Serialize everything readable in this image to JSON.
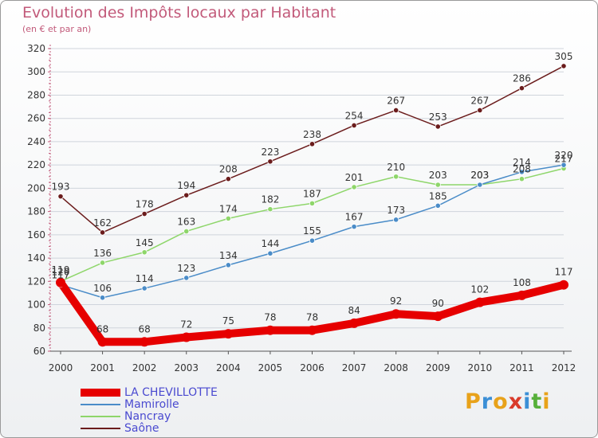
{
  "title": "Evolution des Impôts locaux par Habitant",
  "subtitle": "(en € et par an)",
  "logo": {
    "text": "Proxiti",
    "letters": [
      "P",
      "r",
      "o",
      "x",
      "i",
      "t",
      "i"
    ],
    "colors": [
      "#e8a21a",
      "#3b8fd6",
      "#e8a21a",
      "#d93b2b",
      "#3b8fd6",
      "#57b03a",
      "#e8a21a"
    ]
  },
  "chart_data": {
    "type": "line",
    "x": [
      2000,
      2001,
      2002,
      2003,
      2004,
      2005,
      2006,
      2007,
      2008,
      2009,
      2010,
      2011,
      2012
    ],
    "ylim": [
      60,
      320
    ],
    "yticks": [
      60,
      80,
      100,
      120,
      140,
      160,
      180,
      200,
      220,
      240,
      260,
      280,
      300,
      320
    ],
    "grid": "horizontal",
    "legend": "bottom-left",
    "series": [
      {
        "name": "Saône",
        "color": "#6b1c1c",
        "values": [
          193,
          162,
          178,
          194,
          208,
          223,
          238,
          254,
          267,
          253,
          267,
          286,
          305
        ]
      },
      {
        "name": "Nancray",
        "color": "#8ed66a",
        "values": [
          120,
          136,
          145,
          163,
          174,
          182,
          187,
          201,
          210,
          203,
          203,
          208,
          217
        ]
      },
      {
        "name": "Mamirolle",
        "color": "#4a8cc8",
        "values": [
          117,
          106,
          114,
          123,
          134,
          144,
          155,
          167,
          173,
          185,
          203,
          214,
          220
        ]
      },
      {
        "name": "LA CHEVILLOTTE",
        "color": "#e60000",
        "values": [
          119,
          68,
          68,
          72,
          75,
          78,
          78,
          84,
          92,
          90,
          102,
          108,
          117
        ]
      }
    ],
    "data_labels": {
      "Saône": [
        "193",
        "162",
        "178",
        "194",
        "208",
        "223",
        "238",
        "254",
        "267",
        "253",
        "267",
        "286",
        "305"
      ],
      "Nancray": [
        "120",
        "136",
        "145",
        "163",
        "174",
        "182",
        "187",
        "201",
        "210",
        "203",
        "203",
        "208",
        "217"
      ],
      "Mamirolle": [
        "117",
        "106",
        "114",
        "123",
        "134",
        "144",
        "155",
        "167",
        "173",
        "185",
        "203",
        "214",
        "220"
      ],
      "LA CHEVILLOTTE": [
        "119",
        "68",
        "68",
        "72",
        "75",
        "78",
        "78",
        "84",
        "92",
        "90",
        "102",
        "108",
        "117"
      ]
    }
  },
  "legend_items": [
    "LA CHEVILLOTTE",
    "Mamirolle",
    "Nancray",
    "Saône"
  ]
}
